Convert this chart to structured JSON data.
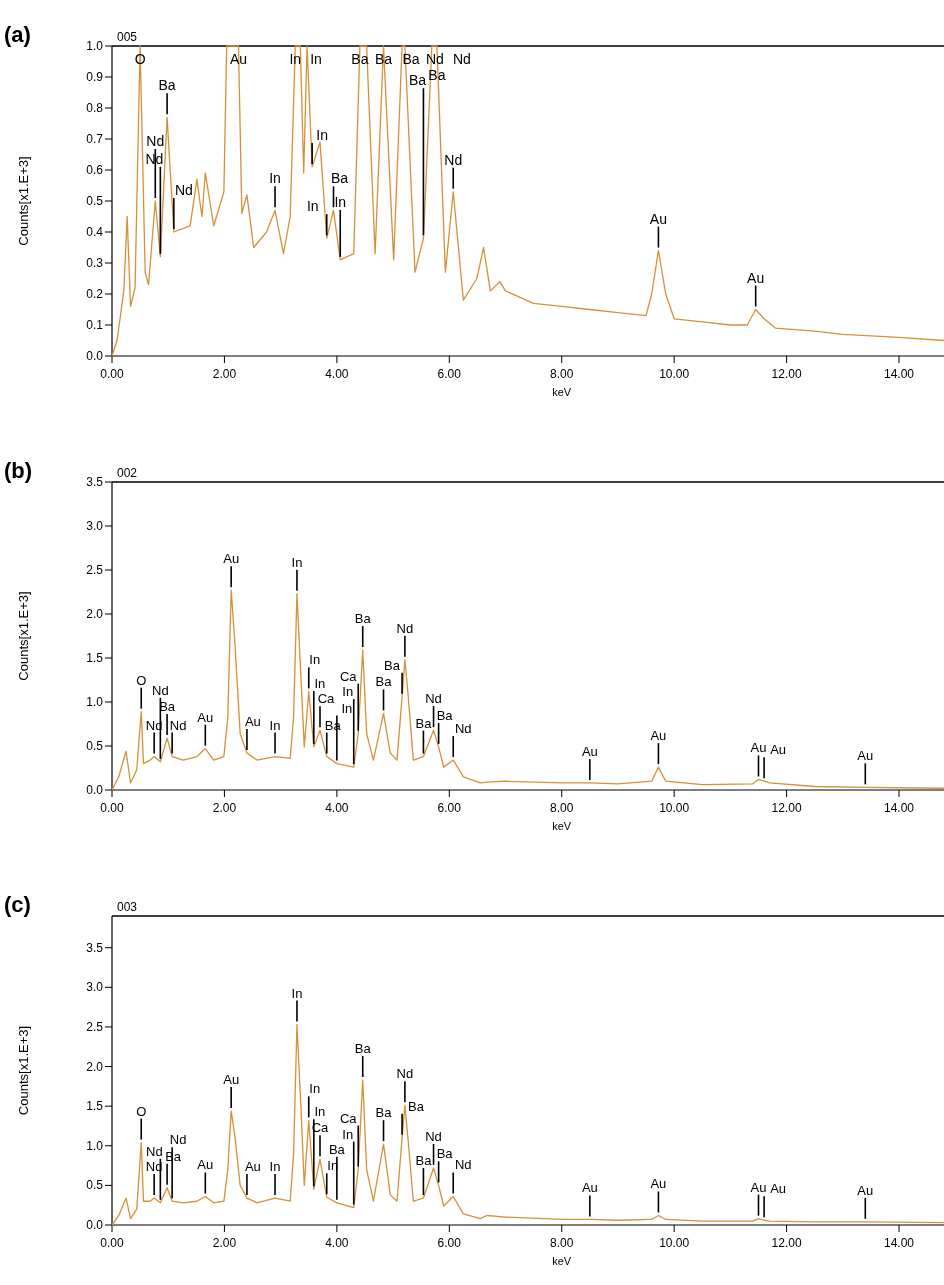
{
  "chart_data": [
    {
      "type": "line",
      "title": "(a)",
      "subtitle": "005",
      "xlabel": "keV",
      "ylabel": "Counts[x1.E+3]",
      "xlim": [
        0,
        14.8
      ],
      "xticks": [
        {
          "value": 0,
          "label": "0.00"
        },
        {
          "value": 2,
          "label": "2.00"
        },
        {
          "value": 4,
          "label": "4.00"
        },
        {
          "value": 6,
          "label": "6.00"
        },
        {
          "value": 8,
          "label": "8.00"
        },
        {
          "value": 10,
          "label": "10.00"
        },
        {
          "value": 12,
          "label": "12.00"
        },
        {
          "value": 14,
          "label": "14.00"
        }
      ],
      "ylim": [
        0,
        1.0
      ],
      "yticks": [
        {
          "value": 0,
          "label": "0.0"
        },
        0.1,
        0.2,
        0.3,
        0.4,
        0.5,
        0.6,
        0.7,
        0.8,
        0.9,
        {
          "value": 1,
          "label": "1.0"
        }
      ],
      "series": [
        {
          "color": "#d4913a",
          "x": [
            0,
            0.09,
            0.21,
            0.27,
            0.33,
            0.41,
            0.5,
            0.59,
            0.65,
            0.77,
            0.86,
            0.98,
            1.1,
            1.39,
            1.51,
            1.6,
            1.66,
            1.81,
            1.99,
            2.04,
            2.25,
            2.31,
            2.4,
            2.52,
            2.75,
            2.9,
            3.05,
            3.17,
            3.26,
            3.35,
            3.41,
            3.47,
            3.56,
            3.7,
            3.82,
            3.94,
            4.06,
            4.3,
            4.41,
            4.53,
            4.68,
            4.83,
            5.01,
            5.16,
            5.21,
            5.39,
            5.54,
            5.69,
            5.78,
            5.93,
            6.07,
            6.25,
            6.49,
            6.61,
            6.73,
            6.9,
            7.0,
            7.5,
            8.0,
            8.5,
            9.0,
            9.5,
            9.6,
            9.72,
            9.85,
            10.0,
            10.5,
            11.0,
            11.3,
            11.45,
            11.6,
            11.8,
            12.5,
            13.0,
            14.0,
            14.8
          ],
          "values": [
            0,
            0.05,
            0.21,
            0.45,
            0.16,
            0.22,
            1.0,
            0.27,
            0.23,
            0.5,
            0.32,
            0.77,
            0.4,
            0.42,
            0.57,
            0.45,
            0.59,
            0.42,
            0.53,
            1.0,
            1.0,
            0.46,
            0.52,
            0.35,
            0.4,
            0.47,
            0.33,
            0.45,
            1.0,
            1.0,
            0.59,
            1.0,
            0.61,
            0.69,
            0.38,
            0.47,
            0.31,
            0.33,
            1.0,
            1.0,
            0.33,
            1.0,
            0.31,
            1.0,
            1.0,
            0.27,
            0.38,
            1.0,
            1.0,
            0.27,
            0.53,
            0.18,
            0.25,
            0.35,
            0.21,
            0.24,
            0.21,
            0.17,
            0.16,
            0.15,
            0.14,
            0.13,
            0.2,
            0.34,
            0.2,
            0.12,
            0.11,
            0.1,
            0.1,
            0.15,
            0.12,
            0.09,
            0.08,
            0.07,
            0.06,
            0.05
          ]
        }
      ],
      "annotations": [
        {
          "text": "Au",
          "x": 9.72,
          "y": 0.34
        },
        {
          "text": "Au",
          "x": 11.45,
          "y": 0.15
        },
        {
          "text": "Nd",
          "x": 0.86,
          "y": 0.32
        },
        {
          "text": "Nd",
          "x": 1.1,
          "y": 0.4
        },
        {
          "text": "Nd",
          "x": 0.77,
          "y": 0.5
        },
        {
          "text": "Ba",
          "x": 0.98,
          "y": 0.77
        },
        {
          "text": "O",
          "x": 0.5,
          "y": 1.0
        },
        {
          "text": "In",
          "x": 2.9,
          "y": 0.47
        },
        {
          "text": "Au",
          "x": 2.25,
          "y": 1.0
        },
        {
          "text": "In",
          "x": 4.06,
          "y": 0.31
        },
        {
          "text": "In",
          "x": 3.82,
          "y": 0.38
        },
        {
          "text": "Ba",
          "x": 3.94,
          "y": 0.47
        },
        {
          "text": "In",
          "x": 3.56,
          "y": 0.61
        },
        {
          "text": "In",
          "x": 3.26,
          "y": 1.0
        },
        {
          "text": "In",
          "x": 3.47,
          "y": 1.0
        },
        {
          "text": "Ba",
          "x": 5.54,
          "y": 0.38
        },
        {
          "text": "Nd",
          "x": 6.07,
          "y": 0.53
        },
        {
          "text": "Ba",
          "x": 4.41,
          "y": 1.0
        },
        {
          "text": "Ba",
          "x": 4.83,
          "y": 1.0
        },
        {
          "text": "Ba",
          "x": 5.16,
          "y": 1.0
        },
        {
          "text": "Nd",
          "x": 5.21,
          "y": 1.0
        },
        {
          "text": "Nd",
          "x": 5.69,
          "y": 1.0
        },
        {
          "text": "Ba",
          "x": 5.78,
          "y": 1.0
        }
      ]
    },
    {
      "type": "line",
      "title": "(b)",
      "subtitle": "002",
      "xlabel": "keV",
      "ylabel": "Counts[x1.E+3]",
      "xlim": [
        0,
        14.8
      ],
      "xticks": [
        {
          "value": 0,
          "label": "0.00"
        },
        {
          "value": 2,
          "label": "2.00"
        },
        {
          "value": 4,
          "label": "4.00"
        },
        {
          "value": 6,
          "label": "6.00"
        },
        {
          "value": 8,
          "label": "8.00"
        },
        {
          "value": 10,
          "label": "10.00"
        },
        {
          "value": 12,
          "label": "12.00"
        },
        {
          "value": 14,
          "label": "14.00"
        }
      ],
      "ylim": [
        0,
        3.5
      ],
      "yticks": [
        {
          "value": 0,
          "label": "0.0"
        },
        0.5,
        {
          "value": 1,
          "label": "1.0"
        },
        1.5,
        {
          "value": 2,
          "label": "2.0"
        },
        2.5,
        {
          "value": 3,
          "label": "3.0"
        },
        3.5
      ],
      "series": [
        {
          "color": "#d4913a",
          "x": [
            0,
            0.12,
            0.25,
            0.33,
            0.44,
            0.52,
            0.56,
            0.68,
            0.75,
            0.86,
            0.98,
            1.07,
            1.27,
            1.51,
            1.66,
            1.81,
            1.99,
            2.06,
            2.12,
            2.19,
            2.28,
            2.4,
            2.58,
            2.9,
            3.17,
            3.23,
            3.29,
            3.36,
            3.42,
            3.5,
            3.59,
            3.7,
            3.82,
            4.0,
            4.3,
            4.38,
            4.46,
            4.53,
            4.65,
            4.83,
            4.95,
            5.07,
            5.16,
            5.21,
            5.27,
            5.36,
            5.54,
            5.72,
            5.81,
            5.9,
            6.07,
            6.25,
            6.55,
            6.67,
            7.0,
            8.0,
            8.5,
            9.0,
            9.6,
            9.72,
            9.85,
            10.5,
            11.4,
            11.5,
            11.6,
            11.7,
            12.5,
            13.4,
            14.8
          ],
          "values": [
            0,
            0.15,
            0.44,
            0.08,
            0.23,
            0.89,
            0.3,
            0.34,
            0.38,
            0.32,
            0.59,
            0.38,
            0.34,
            0.38,
            0.47,
            0.34,
            0.38,
            0.83,
            2.27,
            1.63,
            0.64,
            0.42,
            0.34,
            0.38,
            0.36,
            0.83,
            2.23,
            1.29,
            0.49,
            1.12,
            0.49,
            0.68,
            0.38,
            0.3,
            0.26,
            0.64,
            1.59,
            0.64,
            0.34,
            0.87,
            0.42,
            0.34,
            1.06,
            1.48,
            1.06,
            0.34,
            0.38,
            0.68,
            0.49,
            0.26,
            0.34,
            0.15,
            0.08,
            0.09,
            0.1,
            0.08,
            0.08,
            0.07,
            0.1,
            0.26,
            0.1,
            0.06,
            0.07,
            0.12,
            0.1,
            0.08,
            0.04,
            0.03,
            0.02
          ]
        }
      ],
      "annotations": [
        {
          "text": "O",
          "x": 0.52,
          "y": 0.89
        },
        {
          "text": "Nd",
          "x": 0.75,
          "y": 0.38
        },
        {
          "text": "Ba",
          "x": 0.98,
          "y": 0.59
        },
        {
          "text": "Nd",
          "x": 0.86,
          "y": 0.32
        },
        {
          "text": "Nd",
          "x": 1.07,
          "y": 0.38
        },
        {
          "text": "Au",
          "x": 1.66,
          "y": 0.47
        },
        {
          "text": "Au",
          "x": 2.12,
          "y": 2.27
        },
        {
          "text": "Au",
          "x": 2.4,
          "y": 0.42
        },
        {
          "text": "In",
          "x": 2.9,
          "y": 0.38
        },
        {
          "text": "In",
          "x": 3.29,
          "y": 2.23
        },
        {
          "text": "In",
          "x": 3.5,
          "y": 1.12
        },
        {
          "text": "Ca",
          "x": 3.7,
          "y": 0.68
        },
        {
          "text": "Ba",
          "x": 3.82,
          "y": 0.38
        },
        {
          "text": "In",
          "x": 4.0,
          "y": 0.3
        },
        {
          "text": "In",
          "x": 3.59,
          "y": 0.49
        },
        {
          "text": "In",
          "x": 4.3,
          "y": 0.26
        },
        {
          "text": "Ba",
          "x": 4.46,
          "y": 1.59
        },
        {
          "text": "Ca",
          "x": 4.38,
          "y": 0.64
        },
        {
          "text": "Ba",
          "x": 4.83,
          "y": 0.87
        },
        {
          "text": "Ba",
          "x": 5.16,
          "y": 1.06
        },
        {
          "text": "Nd",
          "x": 5.21,
          "y": 1.48
        },
        {
          "text": "Ba",
          "x": 5.54,
          "y": 0.38
        },
        {
          "text": "Nd",
          "x": 5.72,
          "y": 0.68
        },
        {
          "text": "Ba",
          "x": 5.81,
          "y": 0.49
        },
        {
          "text": "Nd",
          "x": 6.07,
          "y": 0.34
        },
        {
          "text": "Au",
          "x": 8.5,
          "y": 0.08
        },
        {
          "text": "Au",
          "x": 9.72,
          "y": 0.26
        },
        {
          "text": "Au",
          "x": 11.5,
          "y": 0.12
        },
        {
          "text": "Au",
          "x": 11.6,
          "y": 0.1
        },
        {
          "text": "Au",
          "x": 13.4,
          "y": 0.03
        }
      ]
    },
    {
      "type": "line",
      "title": "(c)",
      "subtitle": "003",
      "xlabel": "keV",
      "ylabel": "Counts[x1.E+3]",
      "xlim": [
        0,
        14.8
      ],
      "xticks": [
        {
          "value": 0,
          "label": "0.00"
        },
        {
          "value": 2,
          "label": "2.00"
        },
        {
          "value": 4,
          "label": "4.00"
        },
        {
          "value": 6,
          "label": "6.00"
        },
        {
          "value": 8,
          "label": "8.00"
        },
        {
          "value": 10,
          "label": "10.00"
        },
        {
          "value": 12,
          "label": "12.00"
        },
        {
          "value": 14,
          "label": "14.00"
        }
      ],
      "ylim": [
        0,
        3.9
      ],
      "yticks": [
        {
          "value": 0,
          "label": "0.0"
        },
        0.5,
        {
          "value": 1,
          "label": "1.0"
        },
        1.5,
        {
          "value": 2,
          "label": "2.0"
        },
        2.5,
        {
          "value": 3,
          "label": "3.0"
        },
        3.5
      ],
      "series": [
        {
          "color": "#d4913a",
          "x": [
            0,
            0.12,
            0.25,
            0.33,
            0.44,
            0.52,
            0.56,
            0.68,
            0.75,
            0.86,
            0.98,
            1.07,
            1.27,
            1.51,
            1.66,
            1.81,
            1.99,
            2.06,
            2.12,
            2.19,
            2.28,
            2.4,
            2.58,
            2.9,
            3.17,
            3.23,
            3.29,
            3.36,
            3.42,
            3.5,
            3.59,
            3.7,
            3.82,
            4.0,
            4.3,
            4.38,
            4.46,
            4.53,
            4.65,
            4.83,
            4.95,
            5.07,
            5.16,
            5.21,
            5.27,
            5.36,
            5.54,
            5.72,
            5.81,
            5.9,
            6.07,
            6.25,
            6.55,
            6.67,
            7.0,
            8.0,
            8.5,
            9.0,
            9.6,
            9.72,
            9.85,
            10.5,
            11.4,
            11.5,
            11.6,
            11.7,
            12.5,
            13.4,
            14.8
          ],
          "values": [
            0,
            0.12,
            0.34,
            0.08,
            0.2,
            1.04,
            0.3,
            0.3,
            0.34,
            0.28,
            0.47,
            0.3,
            0.28,
            0.3,
            0.36,
            0.28,
            0.3,
            0.7,
            1.44,
            1.1,
            0.5,
            0.34,
            0.28,
            0.34,
            0.3,
            0.9,
            2.53,
            1.5,
            0.5,
            1.32,
            0.45,
            0.83,
            0.35,
            0.28,
            0.22,
            0.7,
            1.83,
            0.7,
            0.3,
            1.02,
            0.38,
            0.3,
            1.1,
            1.51,
            1.05,
            0.3,
            0.34,
            0.72,
            0.5,
            0.24,
            0.36,
            0.14,
            0.08,
            0.12,
            0.1,
            0.07,
            0.07,
            0.06,
            0.07,
            0.12,
            0.07,
            0.05,
            0.05,
            0.08,
            0.06,
            0.05,
            0.04,
            0.04,
            0.03
          ]
        }
      ],
      "annotations": [
        {
          "text": "O",
          "x": 0.52,
          "y": 1.04
        },
        {
          "text": "Nd",
          "x": 0.75,
          "y": 0.34
        },
        {
          "text": "Ba",
          "x": 0.98,
          "y": 0.47
        },
        {
          "text": "Nd",
          "x": 0.86,
          "y": 0.28
        },
        {
          "text": "Nd",
          "x": 1.07,
          "y": 0.3
        },
        {
          "text": "Au",
          "x": 1.66,
          "y": 0.36
        },
        {
          "text": "Au",
          "x": 2.12,
          "y": 1.44
        },
        {
          "text": "Au",
          "x": 2.4,
          "y": 0.34
        },
        {
          "text": "In",
          "x": 2.9,
          "y": 0.34
        },
        {
          "text": "In",
          "x": 3.29,
          "y": 2.53
        },
        {
          "text": "In",
          "x": 3.5,
          "y": 1.32
        },
        {
          "text": "Ca",
          "x": 3.7,
          "y": 0.83
        },
        {
          "text": "In",
          "x": 3.82,
          "y": 0.35
        },
        {
          "text": "Ba",
          "x": 4.0,
          "y": 0.28
        },
        {
          "text": "In",
          "x": 3.59,
          "y": 0.45
        },
        {
          "text": "In",
          "x": 4.3,
          "y": 0.22
        },
        {
          "text": "Ba",
          "x": 4.46,
          "y": 1.83
        },
        {
          "text": "Ca",
          "x": 4.38,
          "y": 0.7
        },
        {
          "text": "Ba",
          "x": 4.83,
          "y": 1.02
        },
        {
          "text": "Ba",
          "x": 5.16,
          "y": 1.1
        },
        {
          "text": "Nd",
          "x": 5.21,
          "y": 1.51
        },
        {
          "text": "Ba",
          "x": 5.54,
          "y": 0.34
        },
        {
          "text": "Nd",
          "x": 5.72,
          "y": 0.72
        },
        {
          "text": "Ba",
          "x": 5.81,
          "y": 0.5
        },
        {
          "text": "Nd",
          "x": 6.07,
          "y": 0.36
        },
        {
          "text": "Au",
          "x": 8.5,
          "y": 0.07
        },
        {
          "text": "Au",
          "x": 9.72,
          "y": 0.12
        },
        {
          "text": "Au",
          "x": 11.5,
          "y": 0.08
        },
        {
          "text": "Au",
          "x": 11.6,
          "y": 0.06
        },
        {
          "text": "Au",
          "x": 13.4,
          "y": 0.04
        }
      ]
    }
  ]
}
